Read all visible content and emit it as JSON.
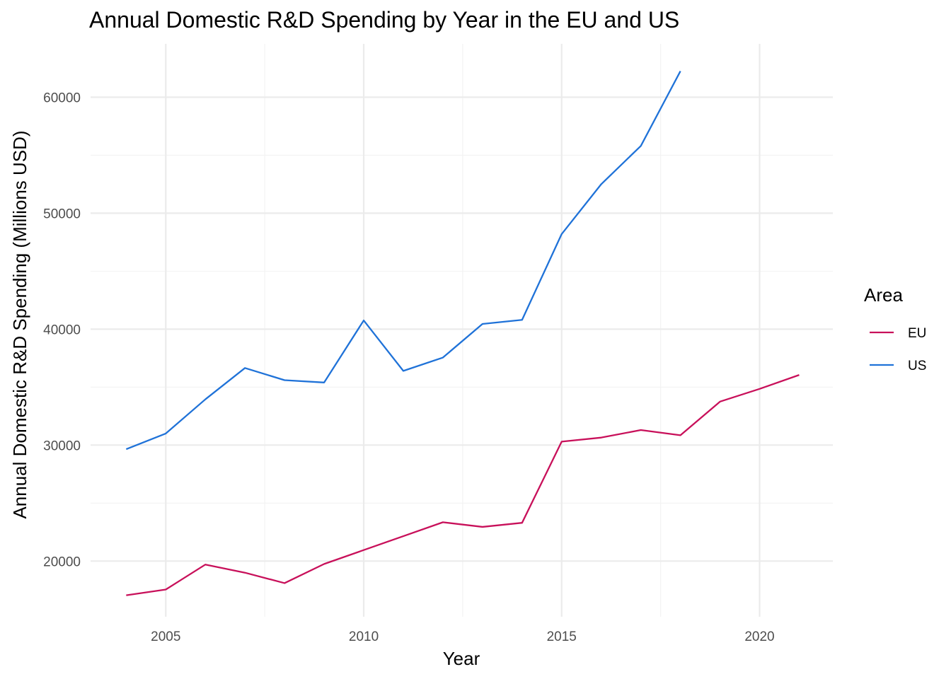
{
  "chart_data": {
    "type": "line",
    "title": "Annual Domestic R&D Spending by Year in the EU and US",
    "xlabel": "Year",
    "ylabel": "Annual Domestic R&D Spending (Millions USD)",
    "xlim": [
      2003.1,
      2021.85
    ],
    "ylim": [
      15200,
      64600
    ],
    "x_ticks": [
      2005,
      2010,
      2015,
      2020
    ],
    "x_tick_labels": [
      "2005",
      "2010",
      "2015",
      "2020"
    ],
    "y_ticks": [
      20000,
      30000,
      40000,
      50000,
      60000
    ],
    "y_tick_labels": [
      "20000",
      "30000",
      "40000",
      "50000",
      "60000"
    ],
    "legend": {
      "title": "Area",
      "position": "right"
    },
    "series": [
      {
        "name": "EU",
        "color": "#C8105A",
        "x": [
          2004,
          2005,
          2006,
          2007,
          2008,
          2009,
          2010,
          2011,
          2012,
          2013,
          2014,
          2015,
          2016,
          2017,
          2018,
          2019,
          2020,
          2021
        ],
        "values": [
          17050,
          17550,
          19700,
          19000,
          18100,
          19750,
          20950,
          22150,
          23350,
          22950,
          23300,
          30300,
          30650,
          31300,
          30850,
          33750,
          34850,
          36050
        ]
      },
      {
        "name": "US",
        "color": "#1F72D8",
        "x": [
          2004,
          2005,
          2006,
          2007,
          2008,
          2009,
          2010,
          2011,
          2012,
          2013,
          2014,
          2015,
          2016,
          2017,
          2018
        ],
        "values": [
          29650,
          31000,
          33950,
          36650,
          35600,
          35400,
          40750,
          36400,
          37550,
          40450,
          40800,
          48200,
          52500,
          55800,
          62250
        ]
      }
    ]
  }
}
